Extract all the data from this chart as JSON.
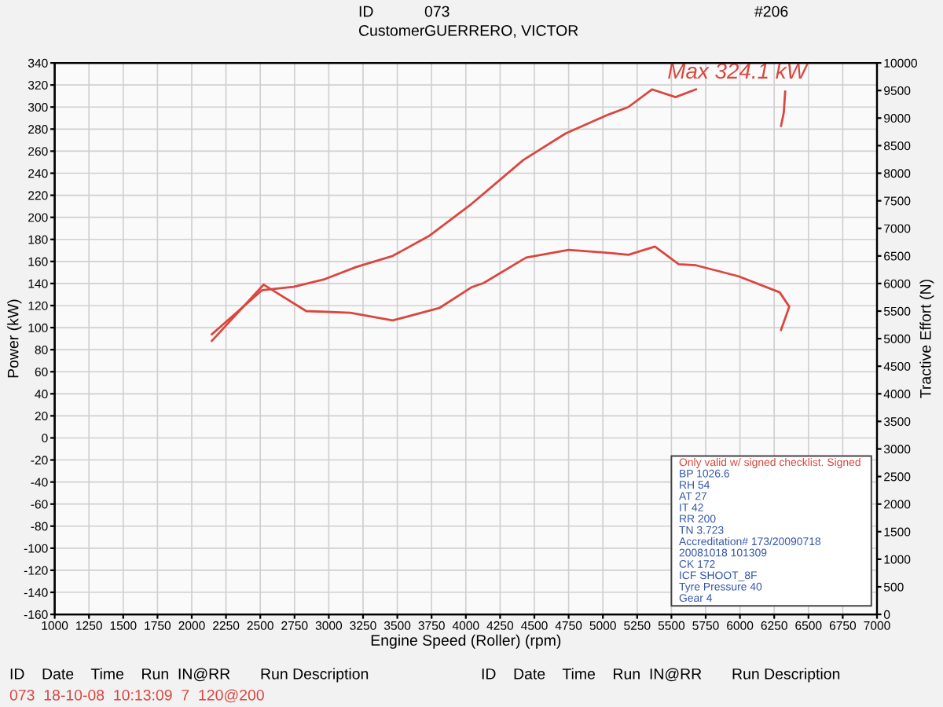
{
  "chart_data": {
    "type": "line",
    "xlabel": "Engine Speed (Roller) (rpm)",
    "ylabel": "Power (kW)",
    "y2label": "Tractive Effort (N)",
    "series": [
      {
        "color": "#d9473f",
        "x": [
          2147,
          2514,
          2743,
          2972,
          3200,
          3466,
          3730,
          4040,
          4420,
          4727,
          5037,
          5186,
          5358,
          5530,
          5679,
          5900,
          6100,
          6330,
          6320,
          6300
        ],
        "values": [
          94,
          134,
          137,
          144,
          155,
          165,
          183,
          212,
          252,
          276,
          293,
          300,
          316,
          309,
          316,
          null,
          null,
          314,
          295,
          283
        ]
      },
      {
        "color": "#d9473f",
        "axis": "y2",
        "x": [
          2147,
          2525,
          2835,
          3156,
          3466,
          3810,
          4040,
          4130,
          4440,
          4750,
          5070,
          5186,
          5380,
          5553,
          5680,
          5990,
          6290,
          6360,
          6300
        ],
        "values": [
          4960,
          5980,
          5500,
          5470,
          5330,
          5560,
          5930,
          6010,
          6470,
          6610,
          6550,
          6520,
          6670,
          6350,
          6330,
          6130,
          5840,
          5580,
          5160
        ]
      }
    ],
    "xlim": [
      1000,
      7000
    ],
    "xticks": [
      1000,
      1250,
      1500,
      1750,
      2000,
      2250,
      2500,
      2750,
      3000,
      3250,
      3500,
      3750,
      4000,
      4250,
      4500,
      4750,
      5000,
      5250,
      5500,
      5750,
      6000,
      6250,
      6500,
      6750,
      7000
    ],
    "ylim": [
      -160,
      340
    ],
    "yticks": [
      -160,
      -140,
      -120,
      -100,
      -80,
      -60,
      -40,
      -20,
      0,
      20,
      40,
      60,
      80,
      100,
      120,
      140,
      160,
      180,
      200,
      220,
      240,
      260,
      280,
      300,
      320,
      340
    ],
    "y2lim": [
      0,
      10000
    ],
    "y2ticks": [
      0,
      500,
      1000,
      1500,
      2000,
      2500,
      3000,
      3500,
      4000,
      4500,
      5000,
      5500,
      6000,
      6500,
      7000,
      7500,
      8000,
      8500,
      9000,
      9500,
      10000
    ],
    "grid": true,
    "marker": "none",
    "line_style": "solid",
    "annotations": [
      "Max 324.1 kW",
      "ID",
      "073",
      "Customer",
      "GUERRERO, VICTOR",
      "#206",
      "Only valid w/ signed checklist. Signed",
      "BP 1026.6",
      "RH 54",
      "AT 27",
      "IT 42",
      "RR 200",
      "TN 3.723",
      "Accreditation# 173/20090718",
      "20081018 101309",
      "CK 172",
      "ICF SHOOT_8F",
      "Tyre Pressure 40",
      "Gear 4",
      "ID    Date    Time    Run  IN@RR       Run Description",
      "073  18-10-08  10:13:09  7  120@200",
      "ID    Date    Time    Run  IN@RR       Run Description"
    ]
  }
}
